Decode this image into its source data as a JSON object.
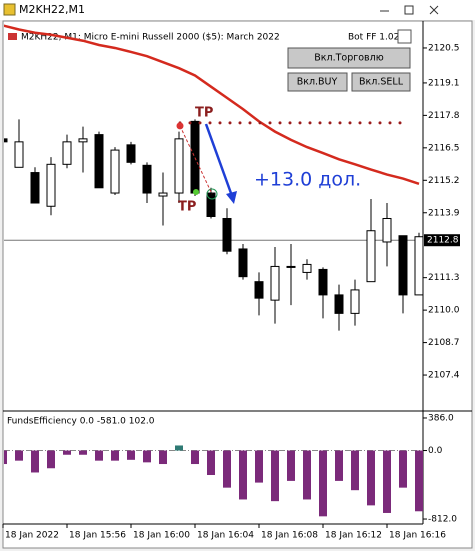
{
  "window": {
    "title": "M2KH22,M1"
  },
  "buttons": [
    "Вкл.Торговлю",
    "Вкл.BUY",
    "Вкл.SELL"
  ],
  "chart_data": [
    {
      "type": "candlestick",
      "title": "M2KH22, M1:  Micro E-mini Russell 2000 ($5): March 2022",
      "expert": "Bot FF 1.02",
      "categories": [
        "18 Jan 2022",
        null,
        null,
        null,
        "18 Jan 15:56",
        null,
        null,
        null,
        "18 Jan 16:00",
        null,
        null,
        null,
        "18 Jan 16:04",
        null,
        null,
        null,
        "18 Jan 16:08",
        null,
        null,
        null,
        "18 Jan 16:12",
        null,
        null,
        null,
        "18 Jan 16:16",
        null,
        null
      ],
      "open": [
        2116.86,
        2115.72,
        2115.51,
        2114.16,
        2115.84,
        2116.74,
        2117.03,
        2114.69,
        2116.62,
        2115.8,
        2114.57,
        2114.69,
        2117.56,
        2114.69,
        2113.67,
        2112.45,
        2111.14,
        2110.4,
        2111.71,
        2111.51,
        2111.63,
        2110.61,
        2109.87,
        2111.14,
        2112.73,
        2112.98,
        2110.61
      ],
      "high": [
        2117.03,
        2117.64,
        2115.72,
        2116.13,
        2117.03,
        2117.35,
        2117.15,
        2116.53,
        2116.74,
        2115.92,
        2115.51,
        2117.15,
        2117.64,
        2114.9,
        2114.08,
        2112.65,
        2111.51,
        2112.53,
        2112.65,
        2112.04,
        2111.71,
        2111.02,
        2111.22,
        2114.45,
        2114.29,
        2112.98,
        2113.1
      ],
      "low": [
        2116.41,
        2115.72,
        2114.29,
        2113.8,
        2115.68,
        2115.51,
        2114.9,
        2114.61,
        2115.84,
        2114.29,
        2113.39,
        2114.29,
        2114.57,
        2113.67,
        2112.24,
        2111.22,
        2109.79,
        2109.46,
        2110.2,
        2111.22,
        2109.67,
        2109.18,
        2109.38,
        2111.14,
        2111.75,
        2109.87,
        2110.61
      ],
      "close": [
        2116.74,
        2116.74,
        2114.29,
        2115.84,
        2116.74,
        2116.86,
        2114.9,
        2116.41,
        2115.92,
        2114.69,
        2114.69,
        2116.86,
        2114.69,
        2113.75,
        2112.36,
        2111.34,
        2110.48,
        2111.75,
        2111.75,
        2111.83,
        2110.61,
        2109.87,
        2110.81,
        2113.18,
        2113.67,
        2110.61,
        2112.94
      ],
      "up_color": "#ffffff",
      "down_color": "#000000",
      "moving_average": {
        "color": "#d42a1e",
        "values": [
          2121.4,
          2121.24,
          2121.11,
          2121.03,
          2120.91,
          2120.79,
          2120.62,
          2120.5,
          2120.34,
          2120.17,
          2119.93,
          2119.69,
          2119.4,
          2118.95,
          2118.5,
          2118.05,
          2117.56,
          2117.15,
          2116.82,
          2116.53,
          2116.29,
          2116.04,
          2115.84,
          2115.63,
          2115.43,
          2115.27,
          2115.06
        ]
      },
      "tp_level": 2117.5,
      "tp_color": "#9b1c1c",
      "current_price": 2112.8,
      "annotations": [
        "TP",
        "TP",
        "+13.0 дол."
      ],
      "ylim": [
        2106.0,
        2121.58
      ],
      "yticks": [
        2120.5,
        2119.1,
        2117.8,
        2116.5,
        2115.2,
        2113.9,
        2111.3,
        {
          "value": 2110.0,
          "label": "2110.0"
        },
        2108.7,
        2107.4
      ]
    },
    {
      "type": "bar",
      "title": "FundsEfficiency 0.0 -581.0 102.0",
      "values": [
        -160,
        -120,
        -260,
        -210,
        -50,
        -50,
        -120,
        -120,
        -110,
        -140,
        -160,
        60,
        -160,
        -290,
        -440,
        -580,
        -380,
        -600,
        -360,
        -580,
        -780,
        -360,
        -470,
        -650,
        -740,
        -440,
        -720
      ],
      "negative_color": "#7b2a7a",
      "positive_color": "#2f7a74",
      "ylim": [
        -859,
        445
      ],
      "yticks": [
        {
          "value": 386,
          "label": "386.0"
        },
        {
          "value": 0,
          "label": "0.0"
        },
        {
          "value": -812,
          "label": "-812.0"
        }
      ]
    }
  ]
}
